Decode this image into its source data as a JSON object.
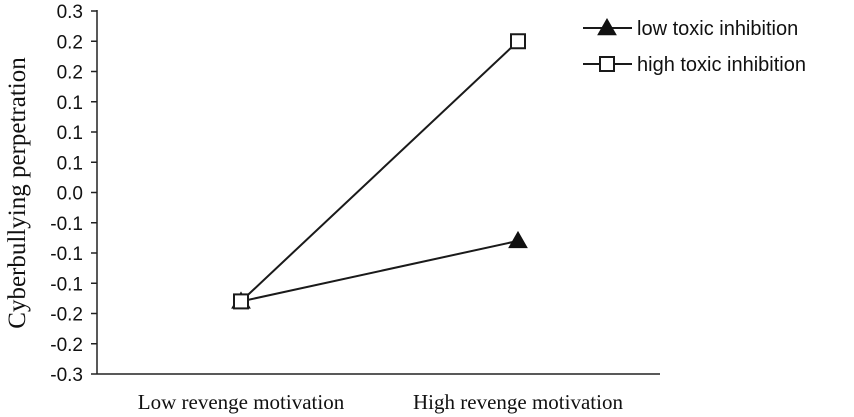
{
  "chart_data": {
    "type": "line",
    "title": "",
    "xlabel": "",
    "ylabel": "Cyberbullying perpetration",
    "categories": [
      "Low revenge motivation",
      "High revenge motivation"
    ],
    "y_tick_values": [
      -0.3,
      -0.25,
      -0.2,
      -0.15,
      -0.1,
      -0.05,
      0.0,
      0.05,
      0.1,
      0.15,
      0.2,
      0.25,
      0.3
    ],
    "y_tick_labels": [
      "-0.3",
      "-0.2",
      "-0.2",
      "-0.1",
      "-0.1",
      "-0.1",
      "0.0",
      "0.1",
      "0.1",
      "0.1",
      "0.2",
      "0.2",
      "0.3"
    ],
    "ylim": [
      -0.3,
      0.3
    ],
    "series": [
      {
        "name": "low toxic inhibition",
        "marker": "triangle-filled",
        "values": [
          -0.18,
          -0.08
        ]
      },
      {
        "name": "high toxic inhibition",
        "marker": "square-open",
        "values": [
          -0.18,
          0.25
        ]
      }
    ],
    "legend_position": "top-right",
    "grid": false,
    "colors": {
      "line": "#1a1a1a",
      "marker_fill_open": "#ffffff",
      "marker_fill_solid": "#111111"
    }
  }
}
